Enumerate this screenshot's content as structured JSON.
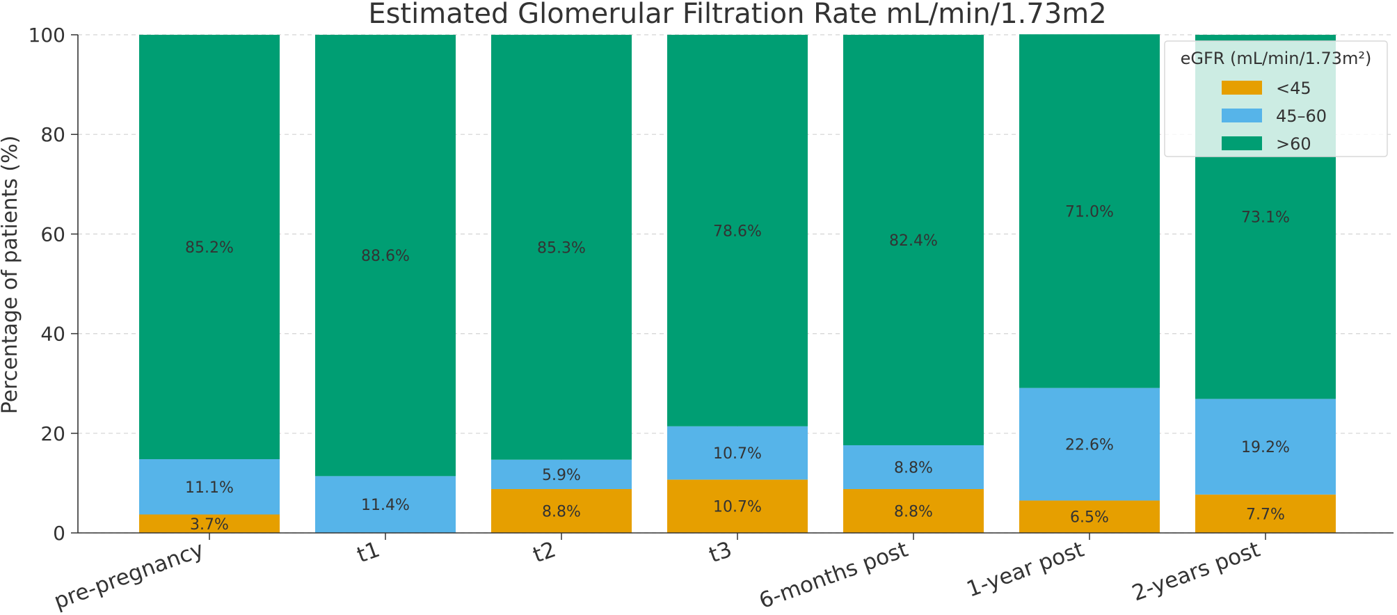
{
  "chart_data": {
    "type": "bar",
    "stacked": true,
    "title": "Estimated Glomerular Filtration Rate mL/min/1.73m2",
    "xlabel": "",
    "ylabel": "Percentage of patients (%)",
    "ylim": [
      0,
      100
    ],
    "yticks": [
      0,
      20,
      40,
      60,
      80,
      100
    ],
    "grid": true,
    "categories": [
      "pre-pregnancy",
      "t1",
      "t2",
      "t3",
      "6-months post",
      "1-year post",
      "2-years post"
    ],
    "series": [
      {
        "name": "<45",
        "color": "#E69F00",
        "values": [
          3.7,
          0.0,
          8.8,
          10.7,
          8.8,
          6.5,
          7.7
        ],
        "labels": [
          "3.7%",
          "",
          "8.8%",
          "10.7%",
          "8.8%",
          "6.5%",
          "7.7%"
        ]
      },
      {
        "name": "45–60",
        "color": "#56B4E9",
        "values": [
          11.1,
          11.4,
          5.9,
          10.7,
          8.8,
          22.6,
          19.2
        ],
        "labels": [
          "11.1%",
          "11.4%",
          "5.9%",
          "10.7%",
          "8.8%",
          "22.6%",
          "19.2%"
        ]
      },
      {
        "name": ">60",
        "color": "#009E73",
        "values": [
          85.2,
          88.6,
          85.3,
          78.6,
          82.4,
          71.0,
          73.1
        ],
        "labels": [
          "85.2%",
          "88.6%",
          "85.3%",
          "78.6%",
          "82.4%",
          "71.0%",
          "73.1%"
        ]
      }
    ],
    "legend": {
      "title": "eGFR (mL/min/1.73m²)",
      "position": "top-right"
    }
  }
}
